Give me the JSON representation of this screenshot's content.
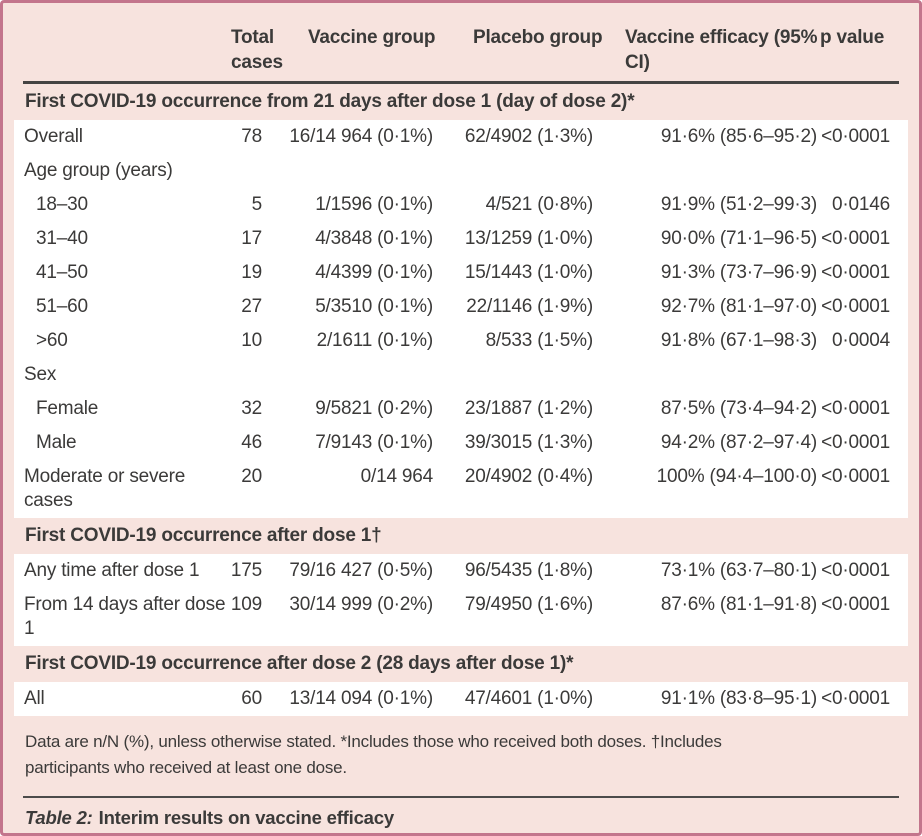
{
  "theme": {
    "border_color": "#c3758c",
    "background_pink": "#f7e3de",
    "row_white": "#ffffff",
    "text_color": "#3b3a39"
  },
  "table": {
    "header": {
      "columns": [
        "Total cases",
        "Vaccine group",
        "Placebo group",
        "Vaccine efficacy (95% CI)",
        "p value"
      ]
    },
    "sections": [
      {
        "title": "First COVID-19 occurrence from 21 days after dose 1 (day of dose 2)*",
        "rows": [
          {
            "label": "Overall",
            "indent": false,
            "cells": [
              "78",
              "16/14 964 (0·1%)",
              "62/4902 (1·3%)",
              "91·6% (85·6–95·2)",
              "<0·0001"
            ]
          },
          {
            "label": "Age group (years)",
            "indent": false,
            "cells": [
              "",
              "",
              "",
              "",
              ""
            ]
          },
          {
            "label": "18–30",
            "indent": true,
            "cells": [
              "5",
              "1/1596 (0·1%)",
              "4/521 (0·8%)",
              "91·9% (51·2–99·3)",
              "0·0146"
            ]
          },
          {
            "label": "31–40",
            "indent": true,
            "cells": [
              "17",
              "4/3848 (0·1%)",
              "13/1259 (1·0%)",
              "90·0% (71·1–96·5)",
              "<0·0001"
            ]
          },
          {
            "label": "41–50",
            "indent": true,
            "cells": [
              "19",
              "4/4399 (0·1%)",
              "15/1443 (1·0%)",
              "91·3% (73·7–96·9)",
              "<0·0001"
            ]
          },
          {
            "label": "51–60",
            "indent": true,
            "cells": [
              "27",
              "5/3510 (0·1%)",
              "22/1146 (1·9%)",
              "92·7% (81·1–97·0)",
              "<0·0001"
            ]
          },
          {
            "label": ">60",
            "indent": true,
            "cells": [
              "10",
              "2/1611 (0·1%)",
              "8/533 (1·5%)",
              "91·8% (67·1–98·3)",
              "0·0004"
            ]
          },
          {
            "label": "Sex",
            "indent": false,
            "cells": [
              "",
              "",
              "",
              "",
              ""
            ]
          },
          {
            "label": "Female",
            "indent": true,
            "cells": [
              "32",
              "9/5821 (0·2%)",
              "23/1887 (1·2%)",
              "87·5% (73·4–94·2)",
              "<0·0001"
            ]
          },
          {
            "label": "Male",
            "indent": true,
            "cells": [
              "46",
              "7/9143 (0·1%)",
              "39/3015 (1·3%)",
              "94·2% (87·2–97·4)",
              "<0·0001"
            ]
          },
          {
            "label": "Moderate or severe cases",
            "indent": false,
            "cells": [
              "20",
              "0/14 964",
              "20/4902 (0·4%)",
              "100% (94·4–100·0)",
              "<0·0001"
            ]
          }
        ]
      },
      {
        "title": "First COVID-19 occurrence after dose 1†",
        "rows": [
          {
            "label": "Any time after dose 1",
            "indent": false,
            "cells": [
              "175",
              "79/16 427 (0·5%)",
              "96/5435 (1·8%)",
              "73·1% (63·7–80·1)",
              "<0·0001"
            ]
          },
          {
            "label": "From 14 days after dose 1",
            "indent": false,
            "cells": [
              "109",
              "30/14 999 (0·2%)",
              "79/4950 (1·6%)",
              "87·6% (81·1–91·8)",
              "<0·0001"
            ]
          }
        ]
      },
      {
        "title": "First COVID-19 occurrence after dose 2 (28 days after dose 1)*",
        "rows": [
          {
            "label": "All",
            "indent": false,
            "cells": [
              "60",
              "13/14 094 (0·1%)",
              "47/4601 (1·0%)",
              "91·1% (83·8–95·1)",
              "<0·0001"
            ]
          }
        ]
      }
    ],
    "footnote": "Data are n/N (%), unless otherwise stated. *Includes those who received both doses. †Includes participants who received at least one dose.",
    "caption": {
      "prefix": "Table 2:",
      "title": "Interim results on vaccine efficacy"
    }
  }
}
